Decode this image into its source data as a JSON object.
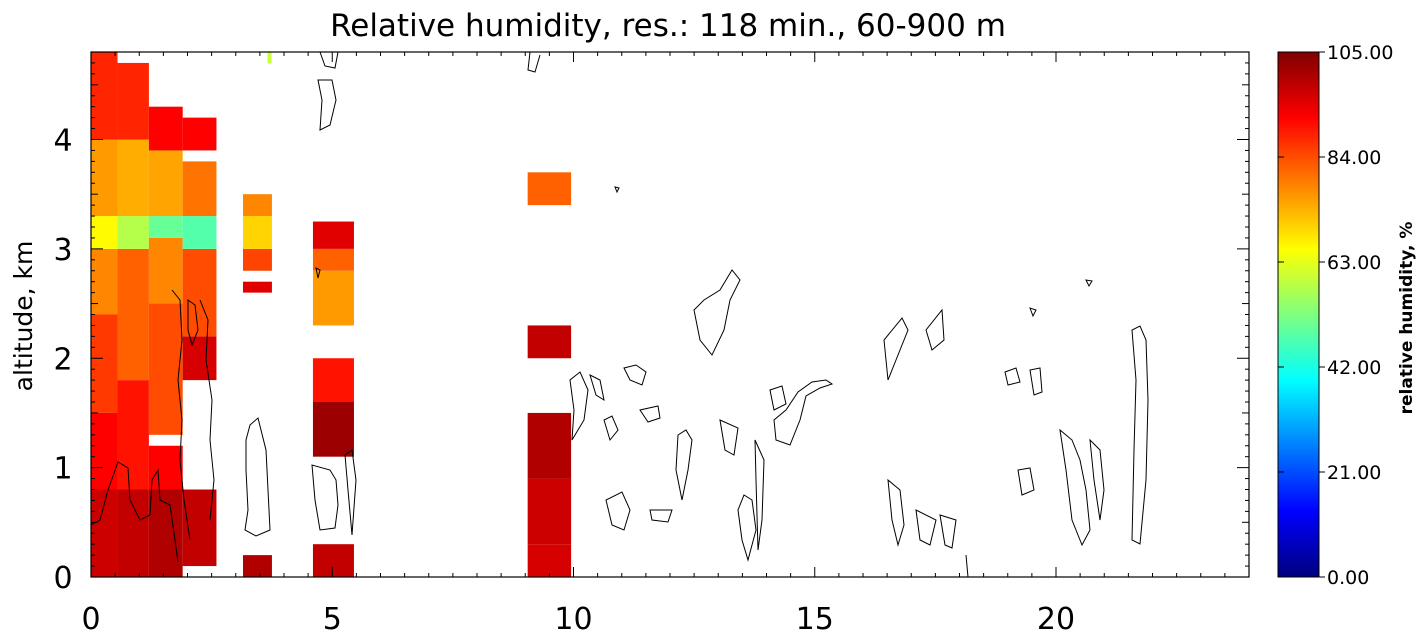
{
  "chart_data": {
    "type": "heatmap",
    "title": "Relative humidity, res.: 118 min.,  60-900 m",
    "ylabel": "altitude, km",
    "xlabel": "",
    "xlim": [
      0,
      24
    ],
    "ylim": [
      0,
      4.8
    ],
    "x_ticks": [
      "0",
      "5",
      "10",
      "15",
      "20"
    ],
    "x_tick_values": [
      0,
      5,
      10,
      15,
      20
    ],
    "y_ticks": [
      "0",
      "1",
      "2",
      "3",
      "4"
    ],
    "y_tick_values": [
      0,
      1,
      2,
      3,
      4
    ],
    "colorbar": {
      "label": "relative humidity, %",
      "range": [
        0,
        105
      ],
      "ticks": [
        "0.00",
        "21.00",
        "42.00",
        "63.00",
        "84.00",
        "105.00"
      ],
      "tick_values": [
        0,
        21,
        42,
        63,
        84,
        105
      ],
      "colormap": [
        "#00007f",
        "#0000ff",
        "#007fff",
        "#00ffff",
        "#7fff7f",
        "#ffff00",
        "#ff7f00",
        "#ff0000",
        "#7f0000"
      ]
    },
    "profiles": [
      {
        "x": [
          0.0,
          0.55
        ],
        "segments": [
          {
            "y": [
              0.0,
              0.8
            ],
            "rh": 97
          },
          {
            "y": [
              0.8,
              1.5
            ],
            "rh": 92
          },
          {
            "y": [
              1.5,
              2.4
            ],
            "rh": 86
          },
          {
            "y": [
              2.4,
              3.0
            ],
            "rh": 78
          },
          {
            "y": [
              3.0,
              3.3
            ],
            "rh": 66
          },
          {
            "y": [
              3.3,
              4.0
            ],
            "rh": 76
          },
          {
            "y": [
              4.0,
              4.8
            ],
            "rh": 88
          }
        ]
      },
      {
        "x": [
          0.55,
          1.2
        ],
        "segments": [
          {
            "y": [
              0.0,
              0.8
            ],
            "rh": 98
          },
          {
            "y": [
              0.8,
              1.8
            ],
            "rh": 90
          },
          {
            "y": [
              1.8,
              3.0
            ],
            "rh": 82
          },
          {
            "y": [
              3.0,
              3.3
            ],
            "rh": 58
          },
          {
            "y": [
              3.3,
              4.0
            ],
            "rh": 74
          },
          {
            "y": [
              4.0,
              4.7
            ],
            "rh": 88
          }
        ]
      },
      {
        "x": [
          1.2,
          1.9
        ],
        "segments": [
          {
            "y": [
              0.0,
              0.8
            ],
            "rh": 100
          },
          {
            "y": [
              0.8,
              1.2
            ],
            "rh": 92
          },
          {
            "y": [
              1.3,
              2.5
            ],
            "rh": 84
          },
          {
            "y": [
              2.5,
              3.1
            ],
            "rh": 78
          },
          {
            "y": [
              3.1,
              3.3
            ],
            "rh": 50
          },
          {
            "y": [
              3.3,
              3.9
            ],
            "rh": 75
          },
          {
            "y": [
              3.9,
              4.3
            ],
            "rh": 92
          }
        ]
      },
      {
        "x": [
          1.9,
          2.6
        ],
        "segments": [
          {
            "y": [
              0.1,
              0.8
            ],
            "rh": 98
          },
          {
            "y": [
              1.8,
              2.2
            ],
            "rh": 96
          },
          {
            "y": [
              2.2,
              3.0
            ],
            "rh": 84
          },
          {
            "y": [
              3.0,
              3.3
            ],
            "rh": 48
          },
          {
            "y": [
              3.3,
              3.8
            ],
            "rh": 80
          },
          {
            "y": [
              3.9,
              4.2
            ],
            "rh": 92
          }
        ]
      },
      {
        "x": [
          3.15,
          3.75
        ],
        "segments": [
          {
            "y": [
              0.0,
              0.2
            ],
            "rh": 100
          },
          {
            "y": [
              2.6,
              2.7
            ],
            "rh": 95
          },
          {
            "y": [
              2.8,
              3.0
            ],
            "rh": 85
          },
          {
            "y": [
              3.0,
              3.3
            ],
            "rh": 70
          },
          {
            "y": [
              3.3,
              3.5
            ],
            "rh": 78
          }
        ]
      },
      {
        "x": [
          4.6,
          5.45
        ],
        "segments": [
          {
            "y": [
              0.0,
              0.3
            ],
            "rh": 98
          },
          {
            "y": [
              1.1,
              1.6
            ],
            "rh": 102
          },
          {
            "y": [
              1.6,
              2.0
            ],
            "rh": 90
          },
          {
            "y": [
              2.3,
              2.8
            ],
            "rh": 76
          },
          {
            "y": [
              2.8,
              3.0
            ],
            "rh": 82
          },
          {
            "y": [
              3.0,
              3.25
            ],
            "rh": 95
          }
        ]
      },
      {
        "x": [
          9.05,
          9.95
        ],
        "segments": [
          {
            "y": [
              0.0,
              0.3
            ],
            "rh": 96
          },
          {
            "y": [
              0.3,
              0.9
            ],
            "rh": 97
          },
          {
            "y": [
              0.9,
              1.5
            ],
            "rh": 100
          },
          {
            "y": [
              2.0,
              2.3
            ],
            "rh": 98
          },
          {
            "y": [
              3.4,
              3.7
            ],
            "rh": 82
          }
        ]
      }
    ],
    "points": [
      {
        "x": 3.7,
        "y": 4.75,
        "rh": 60
      }
    ]
  }
}
